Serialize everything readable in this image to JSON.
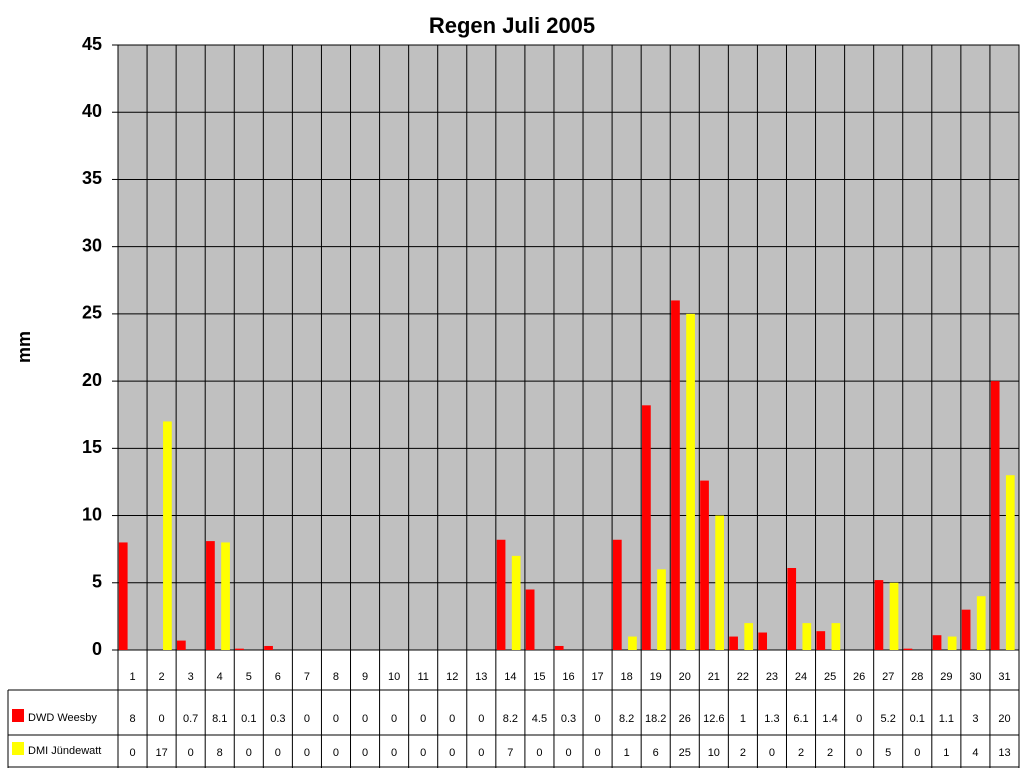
{
  "chart_data": {
    "type": "bar",
    "title": "Regen Juli 2005",
    "y_label": "mm",
    "categories": [
      "1",
      "2",
      "3",
      "4",
      "5",
      "6",
      "7",
      "8",
      "9",
      "10",
      "11",
      "12",
      "13",
      "14",
      "15",
      "16",
      "17",
      "18",
      "19",
      "20",
      "21",
      "22",
      "23",
      "24",
      "25",
      "26",
      "27",
      "28",
      "29",
      "30",
      "31"
    ],
    "series": [
      {
        "name": "DWD Weesby",
        "color": "#ff0000",
        "values": [
          8,
          0,
          0.7,
          8.1,
          0.1,
          0.3,
          0,
          0,
          0,
          0,
          0,
          0,
          0,
          8.2,
          4.5,
          0.3,
          0,
          8.2,
          18.2,
          26,
          12.6,
          1,
          1.3,
          6.1,
          1.4,
          0,
          5.2,
          0.1,
          1.1,
          3,
          20
        ]
      },
      {
        "name": "DMI Jündewatt",
        "color": "#ffff00",
        "values": [
          0,
          17,
          0,
          8,
          0,
          0,
          0,
          0,
          0,
          0,
          0,
          0,
          0,
          7,
          0,
          0,
          0,
          1,
          6,
          25,
          10,
          2,
          0,
          2,
          2,
          0,
          5,
          0,
          1,
          4,
          13
        ]
      }
    ],
    "ylim": [
      0,
      45
    ],
    "yticks": [
      0,
      5,
      10,
      15,
      20,
      25,
      30,
      35,
      40,
      45
    ],
    "grid": true,
    "background": "#c0c0c0"
  }
}
